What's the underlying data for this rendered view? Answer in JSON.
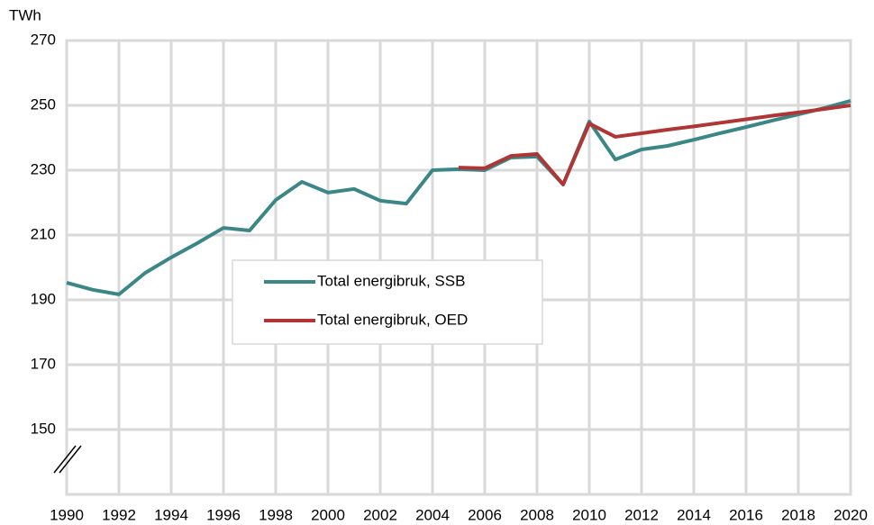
{
  "chart_data": {
    "type": "line",
    "y_axis_label": "TWh",
    "x": [
      1990,
      1991,
      1992,
      1993,
      1994,
      1995,
      1996,
      1997,
      1998,
      1999,
      2000,
      2001,
      2002,
      2003,
      2004,
      2005,
      2006,
      2007,
      2008,
      2009,
      2010,
      2011,
      2012,
      2013,
      2014,
      2015,
      2016,
      2017,
      2018,
      2019,
      2020
    ],
    "series": [
      {
        "name": "Total energibruk, SSB",
        "color": "#3b8686",
        "values": [
          195.3,
          193.1,
          191.7,
          198.3,
          203.1,
          207.5,
          212.2,
          211.4,
          220.8,
          226.4,
          223.1,
          224.2,
          220.6,
          219.7,
          230,
          230.3,
          230,
          233.9,
          234.2,
          225.6,
          245,
          233.3,
          236.4,
          237.5,
          239.4,
          241.4,
          243.3,
          245.3,
          247.2,
          249.2,
          251.4
        ]
      },
      {
        "name": "Total energibruk, OED",
        "color": "#b03535",
        "values": [
          null,
          null,
          null,
          null,
          null,
          null,
          null,
          null,
          null,
          null,
          null,
          null,
          null,
          null,
          null,
          230.8,
          230.6,
          234.4,
          235,
          225.6,
          244.4,
          240.3,
          241.4,
          242.5,
          243.5,
          244.6,
          245.7,
          246.8,
          247.8,
          248.9,
          250
        ]
      }
    ],
    "xlim": [
      1990,
      2020
    ],
    "xticks": [
      1990,
      1992,
      1994,
      1996,
      1998,
      2000,
      2002,
      2004,
      2006,
      2008,
      2010,
      2012,
      2014,
      2016,
      2018,
      2020
    ],
    "ylim": [
      130,
      270
    ],
    "yticks": [
      150,
      170,
      190,
      210,
      230,
      250,
      270
    ],
    "grid": true
  }
}
